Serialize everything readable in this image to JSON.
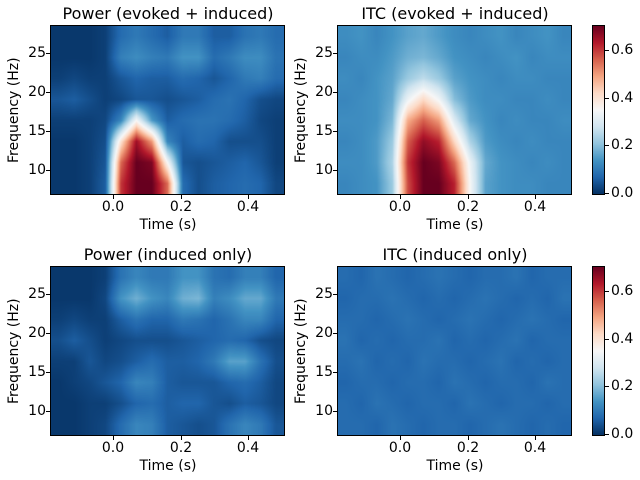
{
  "figure": {
    "background": "#ffffff",
    "text_color": "#000000"
  },
  "colormap": {
    "name": "RdBu_r",
    "vmin": 0.0,
    "vmax": 0.7,
    "stops": [
      "#053061",
      "#2166ac",
      "#4393c3",
      "#92c5de",
      "#d1e5f0",
      "#f7f7f7",
      "#fddbc7",
      "#f4a582",
      "#d6604d",
      "#b2182b",
      "#67001f"
    ]
  },
  "chart_data": [
    {
      "id": "power-evoked-induced",
      "type": "heatmap",
      "title": "Power (evoked + induced)",
      "xlabel": "Time (s)",
      "ylabel": "Frequency (Hz)",
      "x_range": [
        -0.185,
        0.507
      ],
      "y_range": [
        6.9,
        28.5
      ],
      "xticks": [
        {
          "value": 0.0,
          "label": "0.0"
        },
        {
          "value": 0.2,
          "label": "0.2"
        },
        {
          "value": 0.4,
          "label": "0.4"
        }
      ],
      "yticks": [
        {
          "value": 25,
          "label": "25"
        },
        {
          "value": 20,
          "label": "20"
        },
        {
          "value": 15,
          "label": "15"
        },
        {
          "value": 10,
          "label": "10"
        }
      ],
      "x": [
        -0.162,
        -0.116,
        -0.07,
        -0.024,
        0.022,
        0.068,
        0.115,
        0.161,
        0.207,
        0.253,
        0.299,
        0.345,
        0.391,
        0.438,
        0.484
      ],
      "y": [
        28,
        25,
        22,
        19,
        16,
        13,
        10,
        7
      ],
      "values": [
        [
          0.01,
          0.01,
          0.01,
          0.02,
          0.08,
          0.1,
          0.08,
          0.06,
          0.1,
          0.1,
          0.06,
          0.06,
          0.09,
          0.1,
          0.08
        ],
        [
          0.01,
          0.01,
          0.01,
          0.02,
          0.11,
          0.13,
          0.11,
          0.1,
          0.14,
          0.14,
          0.08,
          0.1,
          0.13,
          0.13,
          0.09
        ],
        [
          0.02,
          0.03,
          0.02,
          0.02,
          0.05,
          0.07,
          0.06,
          0.06,
          0.08,
          0.07,
          0.05,
          0.07,
          0.1,
          0.11,
          0.08
        ],
        [
          0.05,
          0.06,
          0.04,
          0.02,
          0.03,
          0.05,
          0.05,
          0.04,
          0.05,
          0.06,
          0.08,
          0.09,
          0.07,
          0.04,
          0.03
        ],
        [
          0.02,
          0.02,
          0.02,
          0.03,
          0.12,
          0.35,
          0.15,
          0.06,
          0.08,
          0.09,
          0.09,
          0.08,
          0.06,
          0.03,
          0.02
        ],
        [
          0.01,
          0.01,
          0.02,
          0.04,
          0.4,
          0.65,
          0.5,
          0.12,
          0.06,
          0.08,
          0.07,
          0.04,
          0.04,
          0.04,
          0.02
        ],
        [
          0.01,
          0.01,
          0.02,
          0.05,
          0.55,
          0.7,
          0.68,
          0.35,
          0.05,
          0.04,
          0.05,
          0.06,
          0.07,
          0.05,
          0.02
        ],
        [
          0.01,
          0.01,
          0.02,
          0.06,
          0.6,
          0.7,
          0.7,
          0.55,
          0.08,
          0.04,
          0.06,
          0.07,
          0.08,
          0.07,
          0.03
        ]
      ]
    },
    {
      "id": "itc-evoked-induced",
      "type": "heatmap",
      "title": "ITC (evoked + induced)",
      "xlabel": "Time (s)",
      "ylabel": "Frequency (Hz)",
      "x_range": [
        -0.185,
        0.507
      ],
      "y_range": [
        6.9,
        28.5
      ],
      "xticks": [
        {
          "value": 0.0,
          "label": "0.0"
        },
        {
          "value": 0.2,
          "label": "0.2"
        },
        {
          "value": 0.4,
          "label": "0.4"
        }
      ],
      "yticks": [
        {
          "value": 25,
          "label": "25"
        },
        {
          "value": 20,
          "label": "20"
        },
        {
          "value": 15,
          "label": "15"
        },
        {
          "value": 10,
          "label": "10"
        }
      ],
      "x": [
        -0.162,
        -0.116,
        -0.07,
        -0.024,
        0.022,
        0.068,
        0.115,
        0.161,
        0.207,
        0.253,
        0.299,
        0.345,
        0.391,
        0.438,
        0.484
      ],
      "y": [
        28,
        25,
        22,
        19,
        16,
        13,
        10,
        7
      ],
      "values": [
        [
          0.13,
          0.14,
          0.12,
          0.14,
          0.16,
          0.17,
          0.15,
          0.13,
          0.12,
          0.13,
          0.14,
          0.12,
          0.13,
          0.14,
          0.12
        ],
        [
          0.12,
          0.13,
          0.13,
          0.15,
          0.18,
          0.19,
          0.17,
          0.14,
          0.13,
          0.12,
          0.13,
          0.14,
          0.12,
          0.13,
          0.13
        ],
        [
          0.13,
          0.12,
          0.14,
          0.16,
          0.22,
          0.26,
          0.22,
          0.16,
          0.14,
          0.13,
          0.12,
          0.13,
          0.13,
          0.12,
          0.12
        ],
        [
          0.12,
          0.13,
          0.14,
          0.17,
          0.33,
          0.42,
          0.34,
          0.2,
          0.15,
          0.13,
          0.13,
          0.12,
          0.12,
          0.13,
          0.12
        ],
        [
          0.13,
          0.13,
          0.14,
          0.19,
          0.48,
          0.56,
          0.5,
          0.3,
          0.17,
          0.14,
          0.12,
          0.13,
          0.12,
          0.12,
          0.13
        ],
        [
          0.12,
          0.13,
          0.15,
          0.22,
          0.56,
          0.66,
          0.62,
          0.42,
          0.24,
          0.15,
          0.13,
          0.12,
          0.13,
          0.12,
          0.12
        ],
        [
          0.13,
          0.13,
          0.15,
          0.24,
          0.6,
          0.7,
          0.68,
          0.55,
          0.33,
          0.17,
          0.14,
          0.13,
          0.12,
          0.13,
          0.12
        ],
        [
          0.12,
          0.13,
          0.14,
          0.22,
          0.58,
          0.7,
          0.7,
          0.62,
          0.35,
          0.16,
          0.14,
          0.13,
          0.13,
          0.12,
          0.12
        ]
      ]
    },
    {
      "id": "power-induced-only",
      "type": "heatmap",
      "title": "Power (induced only)",
      "xlabel": "Time (s)",
      "ylabel": "Frequency (Hz)",
      "x_range": [
        -0.185,
        0.507
      ],
      "y_range": [
        6.9,
        28.5
      ],
      "xticks": [
        {
          "value": 0.0,
          "label": "0.0"
        },
        {
          "value": 0.2,
          "label": "0.2"
        },
        {
          "value": 0.4,
          "label": "0.4"
        }
      ],
      "yticks": [
        {
          "value": 25,
          "label": "25"
        },
        {
          "value": 20,
          "label": "20"
        },
        {
          "value": 15,
          "label": "15"
        },
        {
          "value": 10,
          "label": "10"
        }
      ],
      "x": [
        -0.162,
        -0.116,
        -0.07,
        -0.024,
        0.022,
        0.068,
        0.115,
        0.161,
        0.207,
        0.253,
        0.299,
        0.345,
        0.391,
        0.438,
        0.484
      ],
      "y": [
        28,
        25,
        22,
        19,
        16,
        13,
        10,
        7
      ],
      "values": [
        [
          0.01,
          0.01,
          0.01,
          0.02,
          0.09,
          0.12,
          0.1,
          0.1,
          0.14,
          0.14,
          0.09,
          0.08,
          0.11,
          0.11,
          0.07
        ],
        [
          0.01,
          0.01,
          0.01,
          0.03,
          0.14,
          0.18,
          0.14,
          0.12,
          0.18,
          0.19,
          0.11,
          0.13,
          0.17,
          0.17,
          0.1
        ],
        [
          0.02,
          0.03,
          0.02,
          0.02,
          0.06,
          0.09,
          0.07,
          0.07,
          0.1,
          0.09,
          0.07,
          0.09,
          0.12,
          0.12,
          0.07
        ],
        [
          0.04,
          0.06,
          0.04,
          0.02,
          0.03,
          0.04,
          0.04,
          0.04,
          0.05,
          0.06,
          0.07,
          0.08,
          0.07,
          0.04,
          0.03
        ],
        [
          0.02,
          0.02,
          0.05,
          0.03,
          0.04,
          0.06,
          0.08,
          0.06,
          0.06,
          0.07,
          0.1,
          0.16,
          0.16,
          0.09,
          0.04
        ],
        [
          0.01,
          0.02,
          0.03,
          0.05,
          0.07,
          0.12,
          0.11,
          0.06,
          0.05,
          0.05,
          0.05,
          0.07,
          0.08,
          0.06,
          0.03
        ],
        [
          0.01,
          0.01,
          0.02,
          0.02,
          0.04,
          0.07,
          0.08,
          0.06,
          0.07,
          0.07,
          0.05,
          0.04,
          0.06,
          0.05,
          0.03
        ],
        [
          0.01,
          0.01,
          0.02,
          0.03,
          0.08,
          0.12,
          0.11,
          0.06,
          0.05,
          0.04,
          0.05,
          0.09,
          0.12,
          0.1,
          0.05
        ]
      ]
    },
    {
      "id": "itc-induced-only",
      "type": "heatmap",
      "title": "ITC (induced only)",
      "xlabel": "Time (s)",
      "ylabel": "Frequency (Hz)",
      "x_range": [
        -0.185,
        0.507
      ],
      "y_range": [
        6.9,
        28.5
      ],
      "xticks": [
        {
          "value": 0.0,
          "label": "0.0"
        },
        {
          "value": 0.2,
          "label": "0.2"
        },
        {
          "value": 0.4,
          "label": "0.4"
        }
      ],
      "yticks": [
        {
          "value": 25,
          "label": "25"
        },
        {
          "value": 20,
          "label": "20"
        },
        {
          "value": 15,
          "label": "15"
        },
        {
          "value": 10,
          "label": "10"
        }
      ],
      "x": [
        -0.162,
        -0.116,
        -0.07,
        -0.024,
        0.022,
        0.068,
        0.115,
        0.161,
        0.207,
        0.253,
        0.299,
        0.345,
        0.391,
        0.438,
        0.484
      ],
      "y": [
        28,
        25,
        22,
        19,
        16,
        13,
        10,
        7
      ],
      "values": [
        [
          0.08,
          0.07,
          0.09,
          0.08,
          0.07,
          0.08,
          0.09,
          0.08,
          0.07,
          0.08,
          0.08,
          0.09,
          0.07,
          0.08,
          0.08
        ],
        [
          0.07,
          0.08,
          0.08,
          0.09,
          0.08,
          0.07,
          0.08,
          0.07,
          0.08,
          0.09,
          0.08,
          0.07,
          0.08,
          0.07,
          0.09
        ],
        [
          0.08,
          0.08,
          0.07,
          0.08,
          0.09,
          0.08,
          0.07,
          0.08,
          0.09,
          0.08,
          0.07,
          0.08,
          0.09,
          0.08,
          0.07
        ],
        [
          0.09,
          0.07,
          0.08,
          0.07,
          0.08,
          0.08,
          0.09,
          0.07,
          0.08,
          0.07,
          0.08,
          0.09,
          0.07,
          0.08,
          0.08
        ],
        [
          0.08,
          0.09,
          0.07,
          0.08,
          0.07,
          0.09,
          0.08,
          0.08,
          0.07,
          0.08,
          0.09,
          0.07,
          0.08,
          0.07,
          0.08
        ],
        [
          0.07,
          0.08,
          0.08,
          0.07,
          0.08,
          0.08,
          0.07,
          0.09,
          0.08,
          0.07,
          0.08,
          0.08,
          0.07,
          0.09,
          0.08
        ],
        [
          0.08,
          0.07,
          0.09,
          0.08,
          0.07,
          0.08,
          0.08,
          0.07,
          0.09,
          0.08,
          0.07,
          0.08,
          0.08,
          0.07,
          0.08
        ],
        [
          0.08,
          0.08,
          0.07,
          0.09,
          0.08,
          0.07,
          0.08,
          0.08,
          0.07,
          0.08,
          0.09,
          0.08,
          0.07,
          0.08,
          0.07
        ]
      ]
    }
  ],
  "colorbars": [
    {
      "id": "colorbar-top",
      "vmin": 0.0,
      "vmax": 0.7,
      "ticks": [
        {
          "value": 0.6,
          "label": "0.6"
        },
        {
          "value": 0.4,
          "label": "0.4"
        },
        {
          "value": 0.2,
          "label": "0.2"
        },
        {
          "value": 0.0,
          "label": "0.0"
        }
      ]
    },
    {
      "id": "colorbar-bottom",
      "vmin": 0.0,
      "vmax": 0.7,
      "ticks": [
        {
          "value": 0.6,
          "label": "0.6"
        },
        {
          "value": 0.4,
          "label": "0.4"
        },
        {
          "value": 0.2,
          "label": "0.2"
        },
        {
          "value": 0.0,
          "label": "0.0"
        }
      ]
    }
  ]
}
